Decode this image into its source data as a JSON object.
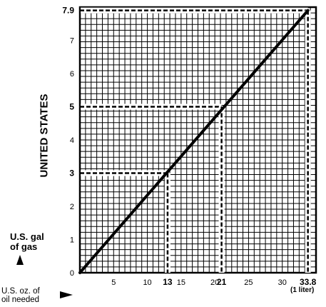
{
  "chart_data": {
    "type": "line",
    "y_axis_title": "UNITED STATES",
    "y_unit_label": "U.S. gal\nof gas",
    "x_unit_label": "U.S. oz. of\noil needed",
    "x_note": "(1 liter)",
    "xlim": [
      0,
      35
    ],
    "ylim": [
      0,
      8
    ],
    "x_ticks": [
      "5",
      "10",
      "13",
      "15",
      "20",
      "21",
      "25",
      "30",
      "33.8"
    ],
    "x_tick_values": [
      5,
      10,
      13,
      15,
      20,
      21,
      25,
      30,
      33.8
    ],
    "x_tick_bold": [
      false,
      false,
      true,
      false,
      false,
      true,
      false,
      false,
      true
    ],
    "y_ticks": [
      "0",
      "1",
      "2",
      "3",
      "4",
      "5",
      "6",
      "7",
      "7.9"
    ],
    "y_tick_values": [
      0,
      1,
      2,
      3,
      4,
      5,
      6,
      7,
      7.9
    ],
    "y_tick_bold": [
      false,
      false,
      false,
      true,
      false,
      true,
      false,
      false,
      true
    ],
    "series": [
      {
        "x": [
          0,
          33.8
        ],
        "y": [
          0,
          7.9
        ]
      }
    ],
    "reference_points": [
      {
        "x": 13,
        "y": 3
      },
      {
        "x": 21,
        "y": 5
      },
      {
        "x": 33.8,
        "y": 7.9
      }
    ],
    "grid": true
  }
}
